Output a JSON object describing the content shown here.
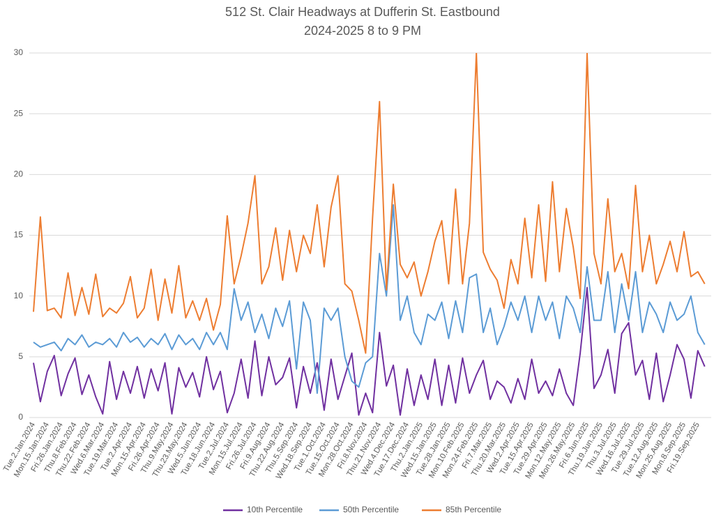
{
  "chart_data": {
    "type": "line",
    "title": "512 St. Clair Headways at Dufferin St. Eastbound",
    "subtitle": "2024-2025 8 to 9 PM",
    "categories": [
      "Tue.2.Jan.2024",
      null,
      "Mon.15.Jan.2024",
      null,
      "Fri.26.Jan.2024",
      null,
      "Thu.8.Feb.2024",
      null,
      "Thu.22.Feb.2024",
      null,
      "Wed.6.Mar.2024",
      null,
      "Tue.19.Mar.2024",
      null,
      "Tue.2.Apr.2024",
      null,
      "Mon.15.Apr.2024",
      null,
      "Fri.26.Apr.2024",
      null,
      "Thu.9.May.2024",
      null,
      "Thu.23.May.2024",
      null,
      "Wed.5.Jun.2024",
      null,
      "Tue.18.Jun.2024",
      null,
      "Tue.2.Jul.2024",
      null,
      "Mon.15.Jul.2024",
      null,
      "Fri.26.Jul.2024",
      null,
      "Fri.9.Aug.2024",
      null,
      "Thu.22.Aug.2024",
      null,
      "Thu.5.Sep.2024",
      null,
      "Wed.18.Sep.2024",
      null,
      "Tue.1.Oct.2024",
      null,
      "Tue.15.Oct.2024",
      null,
      "Mon.28.Oct.2024",
      null,
      "Fri.8.Nov.2024",
      null,
      "Thu.21.Nov.2024",
      null,
      "Wed.4.Dec.2024",
      null,
      "Tue.17.Dec.2024",
      null,
      "Thu.2.Jan.2025",
      null,
      "Wed.15.Jan.2025",
      null,
      "Tue.28.Jan.2025",
      null,
      "Mon.10.Feb.2025",
      null,
      "Mon.24.Feb.2025",
      null,
      "Fri.7.Mar.2025",
      null,
      "Thu.20.Mar.2025",
      null,
      "Wed.2.Apr.2025",
      null,
      "Tue.15.Apr.2025",
      null,
      "Tue.29.Apr.2025",
      null,
      "Mon.12.May.2025",
      null,
      "Mon.26.May.2025",
      null,
      "Fri.6.Jun.2025",
      null,
      "Thu.19.Jun.2025",
      null,
      "Thu.3.Jul.2025",
      null,
      "Wed.16.Jul.2025",
      null,
      "Tue.29.Jul.2025",
      null,
      "Tue.12.Aug.2025",
      null,
      "Mon.25.Aug.2025",
      null,
      "Mon.8.Sep.2025",
      null,
      "Fri.19.Sep.2025",
      null
    ],
    "series": [
      {
        "name": "10th Percentile",
        "color": "#7030a0",
        "values": [
          4.5,
          1.3,
          3.8,
          5.1,
          1.8,
          3.6,
          4.9,
          1.9,
          3.5,
          1.7,
          0.3,
          4.6,
          1.5,
          3.8,
          2.0,
          4.2,
          1.6,
          4.0,
          2.2,
          4.5,
          0.3,
          4.1,
          2.5,
          3.7,
          1.7,
          5.0,
          2.3,
          3.8,
          0.4,
          2.0,
          4.8,
          1.6,
          6.3,
          1.8,
          5.0,
          2.7,
          3.3,
          4.9,
          0.8,
          4.2,
          2.0,
          4.5,
          0.6,
          4.8,
          1.5,
          3.4,
          5.3,
          0.2,
          2.0,
          0.4,
          7.0,
          2.6,
          4.3,
          0.2,
          4.0,
          1.0,
          3.5,
          1.5,
          4.8,
          1.0,
          4.3,
          1.2,
          4.9,
          2.0,
          3.5,
          4.7,
          1.5,
          3.0,
          2.5,
          1.2,
          3.2,
          1.5,
          4.8,
          2.0,
          3.0,
          1.8,
          4.0,
          2.0,
          1.0,
          5.3,
          10.7,
          2.4,
          3.5,
          5.6,
          2.0,
          6.9,
          7.8,
          3.5,
          4.7,
          1.5,
          5.3,
          1.3,
          3.5,
          6.0,
          4.8,
          1.6,
          5.5,
          4.2
        ]
      },
      {
        "name": "50th Percentile",
        "color": "#5b9bd5",
        "values": [
          6.2,
          5.8,
          6.0,
          6.2,
          5.5,
          6.5,
          6.0,
          6.8,
          5.8,
          6.2,
          6.0,
          6.5,
          5.8,
          7.0,
          6.2,
          6.6,
          5.8,
          6.5,
          6.0,
          6.9,
          5.6,
          6.8,
          6.0,
          6.5,
          5.6,
          7.0,
          6.0,
          7.0,
          5.6,
          10.6,
          8.0,
          9.5,
          7.0,
          8.5,
          6.5,
          9.0,
          7.5,
          9.6,
          4.0,
          9.5,
          8.0,
          2.0,
          9.0,
          8.0,
          9.0,
          5.0,
          3.0,
          2.5,
          4.5,
          5.0,
          13.5,
          10.0,
          17.5,
          8.0,
          10.0,
          7.0,
          6.0,
          8.5,
          8.0,
          9.5,
          6.5,
          9.6,
          7.0,
          11.5,
          11.8,
          7.0,
          9.0,
          6.0,
          7.5,
          9.5,
          8.0,
          10.0,
          7.0,
          10.0,
          8.0,
          9.5,
          6.5,
          10.0,
          9.0,
          7.0,
          12.4,
          8.0,
          8.0,
          12.0,
          7.0,
          11.0,
          8.0,
          12.0,
          7.0,
          9.5,
          8.5,
          7.0,
          9.5,
          8.0,
          8.5,
          10.0,
          7.0,
          6.0
        ]
      },
      {
        "name": "85th Percentile",
        "color": "#ed7d31",
        "values": [
          8.7,
          16.5,
          8.8,
          9.0,
          8.2,
          11.9,
          8.4,
          10.7,
          8.5,
          11.8,
          8.3,
          9.0,
          8.6,
          9.4,
          11.6,
          8.2,
          9.0,
          12.2,
          8.0,
          11.4,
          8.6,
          12.5,
          8.2,
          9.6,
          8.0,
          9.8,
          7.2,
          9.3,
          16.6,
          11.0,
          13.3,
          16.0,
          19.9,
          11.0,
          12.4,
          15.6,
          11.3,
          15.4,
          12.0,
          15.0,
          13.5,
          17.5,
          12.4,
          17.3,
          19.9,
          11.0,
          10.4,
          8.0,
          5.3,
          16.4,
          26.0,
          10.5,
          19.2,
          12.6,
          11.5,
          12.8,
          10.0,
          12.0,
          14.5,
          16.2,
          11.0,
          18.8,
          11.0,
          16.0,
          30,
          13.6,
          12.2,
          11.3,
          9.0,
          13.0,
          11.0,
          16.4,
          11.5,
          17.5,
          11.2,
          19.4,
          12.0,
          17.2,
          14.0,
          9.8,
          30,
          13.5,
          11.0,
          18.0,
          12.0,
          13.5,
          10.6,
          19.1,
          12.0,
          15.0,
          11.0,
          12.6,
          14.5,
          12.0,
          15.3,
          11.6,
          12.0,
          11.0
        ]
      }
    ],
    "ylim": [
      0,
      30
    ],
    "yticks": [
      0,
      5,
      10,
      15,
      20,
      25,
      30
    ],
    "grid": true,
    "legend": "bottom"
  }
}
